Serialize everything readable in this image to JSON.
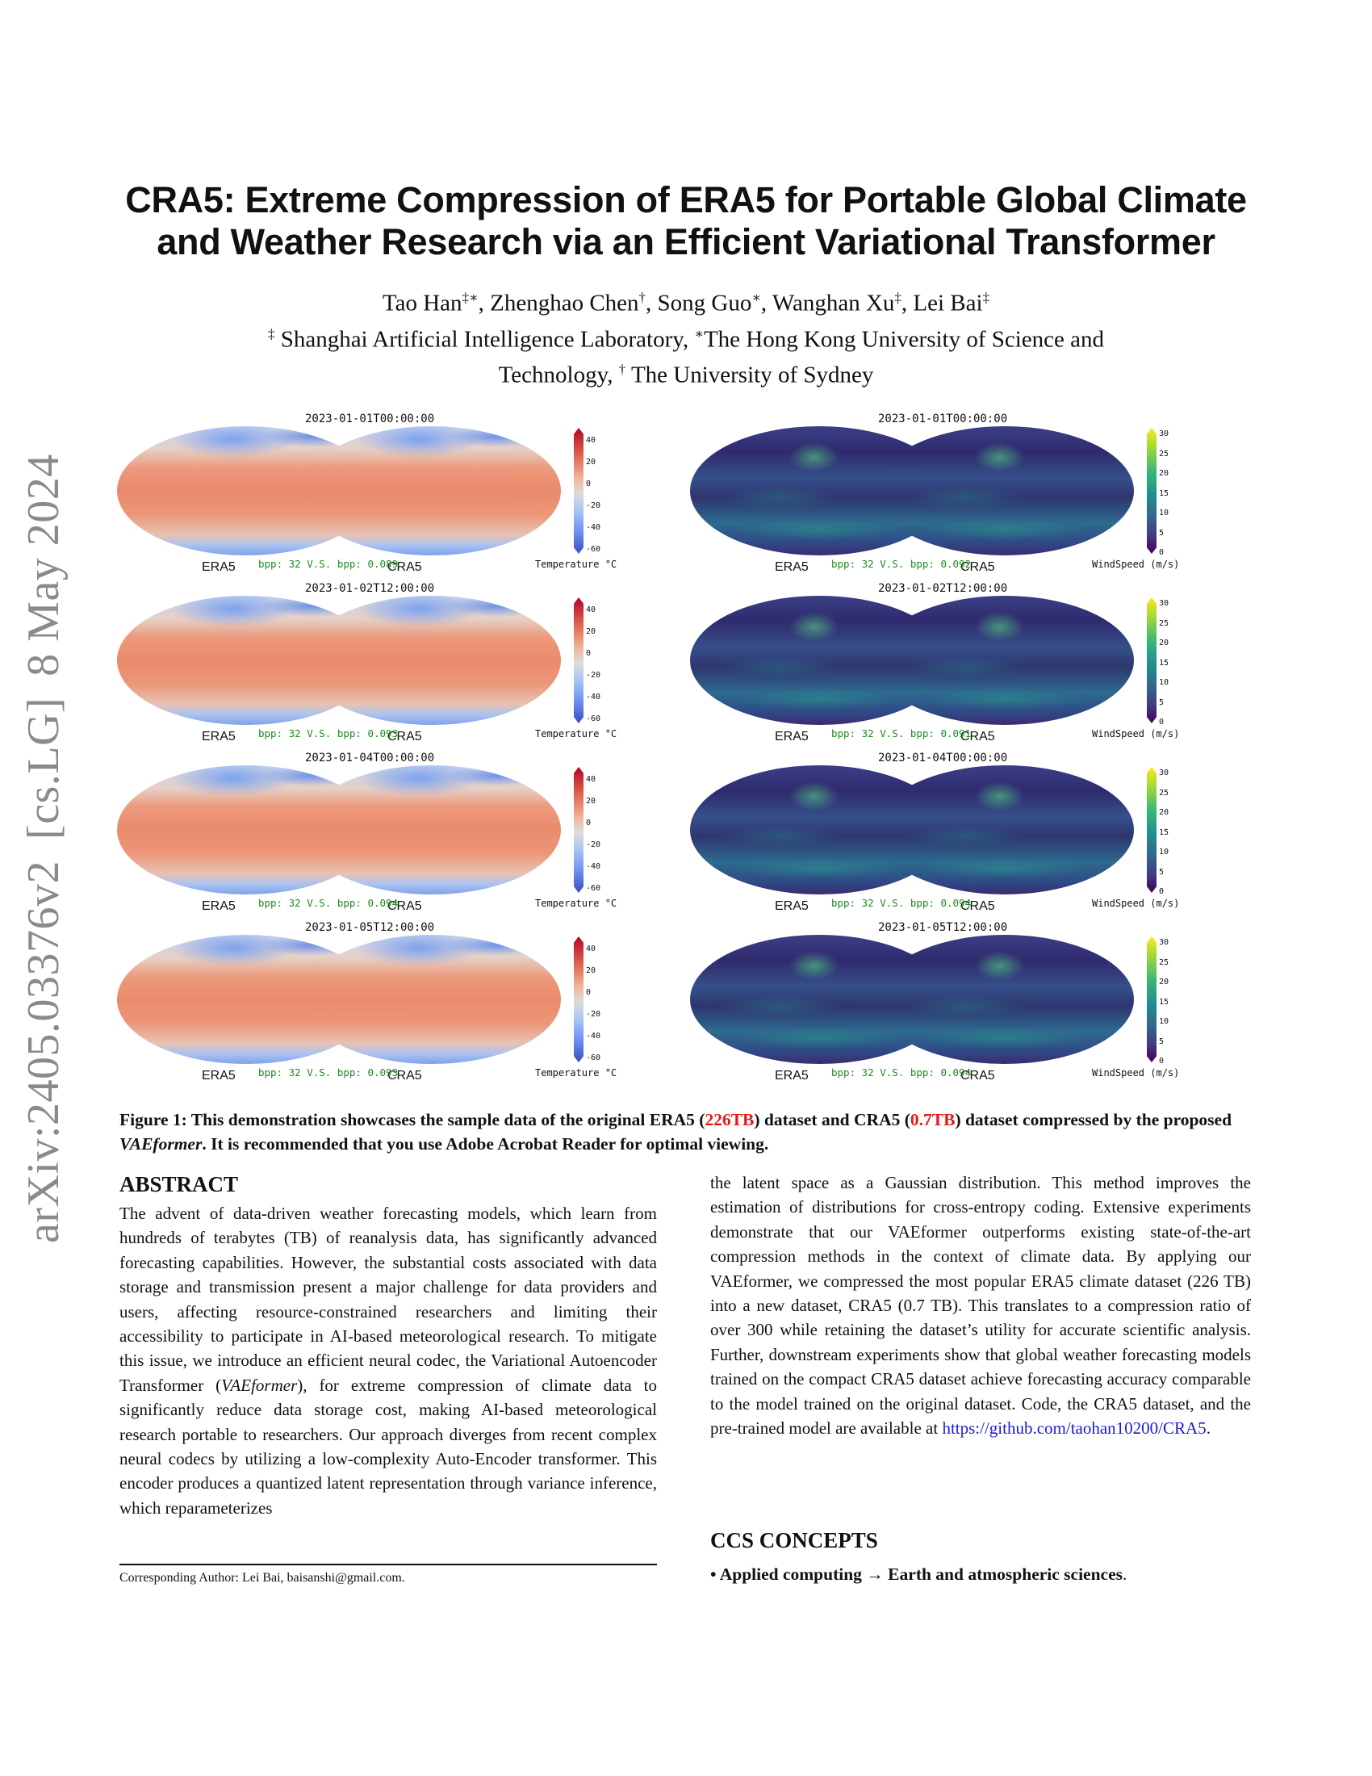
{
  "arxiv_stamp": {
    "id": "arXiv:2405.03376v2",
    "category": "[cs.LG]",
    "date": "8 May 2024"
  },
  "paper": {
    "title_line1": "CRA5: Extreme Compression of ERA5 for Portable Global Climate",
    "title_line2": "and Weather Research via an Efficient Variational Transformer",
    "authors": [
      {
        "name": "Tao Han",
        "marks": "‡∗"
      },
      {
        "name": "Zhenghao Chen",
        "marks": "†"
      },
      {
        "name": "Song Guo",
        "marks": "∗"
      },
      {
        "name": "Wanghan Xu",
        "marks": "‡"
      },
      {
        "name": "Lei Bai",
        "marks": "‡"
      }
    ],
    "affiliation_line1_mark1": "‡",
    "affiliation_line1_text1": " Shanghai Artificial Intelligence Laboratory, ",
    "affiliation_line1_mark2": "∗",
    "affiliation_line1_text2": "The Hong Kong University of Science and",
    "affiliation_line2_text1": "Technology, ",
    "affiliation_line2_mark": "†",
    "affiliation_line2_text2": " The University of Sydney"
  },
  "figure": {
    "rows": [
      {
        "timestamp": "2023-01-01T00:00:00",
        "temp_bpp": "bpp: 32 V.S. bpp: 0.089",
        "wind_timestamp": "2023-01-01T00:00:00",
        "wind_bpp": "bpp: 32 V.S. bpp: 0.092"
      },
      {
        "timestamp": "2023-01-02T12:00:00",
        "temp_bpp": "bpp: 32 V.S. bpp: 0.093",
        "wind_timestamp": "2023-01-02T12:00:00",
        "wind_bpp": "bpp: 32 V.S. bpp: 0.091"
      },
      {
        "timestamp": "2023-01-04T00:00:00",
        "temp_bpp": "bpp: 32 V.S. bpp: 0.094",
        "wind_timestamp": "2023-01-04T00:00:00",
        "wind_bpp": "bpp: 32 V.S. bpp: 0.094"
      },
      {
        "timestamp": "2023-01-05T12:00:00",
        "temp_bpp": "bpp: 32 V.S. bpp: 0.093",
        "wind_timestamp": "2023-01-05T12:00:00",
        "wind_bpp": "bpp: 32 V.S. bpp: 0.094"
      }
    ],
    "left_map_label": "ERA5",
    "right_map_label": "CRA5",
    "temp_colorbar": {
      "label": "Temperature °C",
      "ticks": [
        "40",
        "20",
        "0",
        "-20",
        "-40",
        "-60"
      ],
      "colors": [
        "#b40426",
        "#dcdcdc",
        "#3b4cc0"
      ]
    },
    "wind_colorbar": {
      "label": "WindSpeed (m/s)",
      "ticks": [
        "30",
        "25",
        "20",
        "15",
        "10",
        "5",
        "0"
      ],
      "colors": [
        "#fde725",
        "#21918c",
        "#440154"
      ]
    },
    "bpp_color": "#1f8a1f",
    "caption_part1": "Figure 1: This demonstration showcases the sample data of the original ERA5 (",
    "caption_highlight1": "226TB",
    "caption_part2": ") dataset and CRA5 (",
    "caption_highlight2": "0.7TB",
    "caption_part3": ") dataset compressed by the proposed ",
    "caption_italic": "VAEformer",
    "caption_part4": ". It is recommended that you use Adobe Acrobat Reader for optimal viewing.",
    "highlight_color": "#e31a1c"
  },
  "abstract": {
    "heading": "ABSTRACT",
    "text_part1": "The advent of data-driven weather forecasting models, which learn from hundreds of terabytes (TB) of reanalysis data, has significantly advanced forecasting capabilities. However, the substantial costs associated with data storage and transmission present a major challenge for data providers and users, affecting resource-constrained researchers and limiting their accessibility to participate in AI-based meteorological research. To mitigate this issue, we introduce an efficient neural codec, the Variational Autoencoder Transformer (",
    "text_italic": "VAEformer",
    "text_part2": "), for extreme compression of climate data to significantly reduce data storage cost, making AI-based meteorological research portable to researchers. Our approach diverges from recent complex neural codecs by utilizing a low-complexity Auto-Encoder transformer. This encoder produces a quantized latent representation through variance inference, which reparameterizes",
    "right_text": "the latent space as a Gaussian distribution. This method improves the estimation of distributions for cross-entropy coding. Extensive experiments demonstrate that our VAEformer outperforms existing state-of-the-art compression methods in the context of climate data. By applying our VAEformer, we compressed the most popular ERA5 climate dataset (226 TB) into a new dataset, CRA5 (0.7 TB). This translates to a compression ratio of over 300 while retaining the dataset’s utility for accurate scientific analysis. Further, downstream experiments show that global weather forecasting models trained on the compact CRA5 dataset achieve forecasting accuracy comparable to the model trained on the original dataset. Code, the CRA5 dataset, and the pre-trained model are available at ",
    "link": "https://github.com/taohan10200/CRA5",
    "link_tail": ".",
    "link_color": "#1a1adb"
  },
  "ccs": {
    "heading": "CCS CONCEPTS",
    "item": "• Applied computing → Earth and atmospheric sciences",
    "item_tail": "."
  },
  "footnote": {
    "text": "Corresponding Author: Lei Bai, baisanshi@gmail.com."
  }
}
